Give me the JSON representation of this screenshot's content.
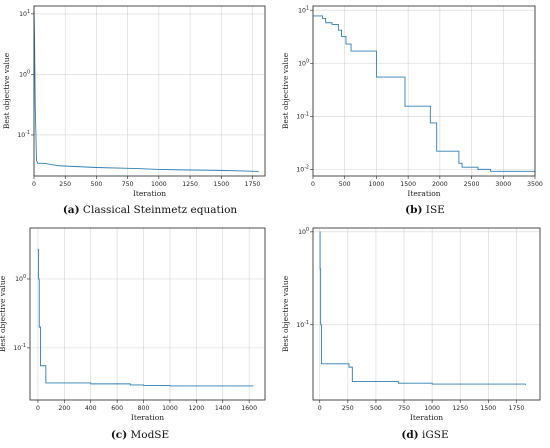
{
  "captions": [
    {
      "tag": "(a)",
      "text": "Classical Steinmetz equation"
    },
    {
      "tag": "(b)",
      "text": "ISE"
    },
    {
      "tag": "(c)",
      "text": "ModSE"
    },
    {
      "tag": "(d)",
      "text": "iGSE"
    }
  ],
  "chart_data": [
    {
      "type": "line",
      "grid": true,
      "log_y": true,
      "xlabel": "Iteration",
      "ylabel": "Best objective value",
      "xlim": [
        0,
        1850
      ],
      "ylim": [
        0.021,
        13.5
      ],
      "x_ticks": [
        0,
        250,
        500,
        750,
        1000,
        1250,
        1500,
        1750
      ],
      "y_ticks": [
        {
          "value": 10,
          "label": "10^1"
        },
        {
          "value": 1,
          "label": "10^0"
        },
        {
          "value": 0.1,
          "label": "10^-1"
        }
      ],
      "series": [
        {
          "color": "#2f7fb8",
          "x": [
            0,
            5,
            10,
            20,
            30,
            80,
            200,
            500,
            800,
            1000,
            1200,
            1500,
            1800
          ],
          "y": [
            11.5,
            3.0,
            0.3,
            0.038,
            0.034,
            0.034,
            0.031,
            0.029,
            0.028,
            0.027,
            0.0265,
            0.026,
            0.025
          ]
        }
      ]
    },
    {
      "type": "line",
      "grid": true,
      "log_y": true,
      "xlabel": "Iteration",
      "ylabel": "Best objective value",
      "xlim": [
        0,
        3500
      ],
      "ylim": [
        0.0075,
        12
      ],
      "x_ticks": [
        0,
        500,
        1000,
        1500,
        2000,
        2500,
        3000,
        3500
      ],
      "y_ticks": [
        {
          "value": 10,
          "label": "10^1"
        },
        {
          "value": 1,
          "label": "10^0"
        },
        {
          "value": 0.1,
          "label": "10^-1"
        },
        {
          "value": 0.01,
          "label": "10^-2"
        }
      ],
      "series": [
        {
          "color": "#2f7fb8",
          "step": true,
          "x": [
            0,
            150,
            200,
            300,
            400,
            450,
            520,
            600,
            1000,
            1450,
            1850,
            1950,
            2300,
            2350,
            2600,
            2800,
            3500
          ],
          "y": [
            7.8,
            7.0,
            5.8,
            5.4,
            4.2,
            3.2,
            2.3,
            1.7,
            0.55,
            0.155,
            0.075,
            0.022,
            0.013,
            0.011,
            0.01,
            0.0092,
            0.009
          ]
        }
      ]
    },
    {
      "type": "line",
      "grid": true,
      "log_y": true,
      "xlabel": "Iteration",
      "ylabel": "Best objective value",
      "xlim": [
        -60,
        1720
      ],
      "ylim": [
        0.0175,
        5.5
      ],
      "x_ticks": [
        0,
        200,
        400,
        600,
        800,
        1000,
        1200,
        1400,
        1600
      ],
      "y_ticks": [
        {
          "value": 1,
          "label": "10^0"
        },
        {
          "value": 0.1,
          "label": "10^-1"
        }
      ],
      "series": [
        {
          "color": "#2f7fb8",
          "step": true,
          "x": [
            0,
            5,
            10,
            20,
            60,
            400,
            700,
            800,
            1000,
            1630
          ],
          "y": [
            2.7,
            1.0,
            0.2,
            0.055,
            0.031,
            0.03,
            0.029,
            0.0285,
            0.028,
            0.0278
          ]
        }
      ]
    },
    {
      "type": "line",
      "grid": true,
      "log_y": true,
      "xlabel": "Iteration",
      "ylabel": "Best objective value",
      "xlim": [
        -60,
        1960
      ],
      "ylim": [
        0.0155,
        1.1
      ],
      "x_ticks": [
        0,
        250,
        500,
        750,
        1000,
        1250,
        1500,
        1750
      ],
      "y_ticks": [
        {
          "value": 1,
          "label": "10^0"
        },
        {
          "value": 0.1,
          "label": "10^-1"
        }
      ],
      "series": [
        {
          "color": "#2f7fb8",
          "step": true,
          "x": [
            0,
            3,
            8,
            15,
            260,
            290,
            700,
            1000,
            1830
          ],
          "y": [
            1.0,
            0.4,
            0.1,
            0.038,
            0.035,
            0.0245,
            0.0235,
            0.023,
            0.0225
          ]
        }
      ]
    }
  ]
}
